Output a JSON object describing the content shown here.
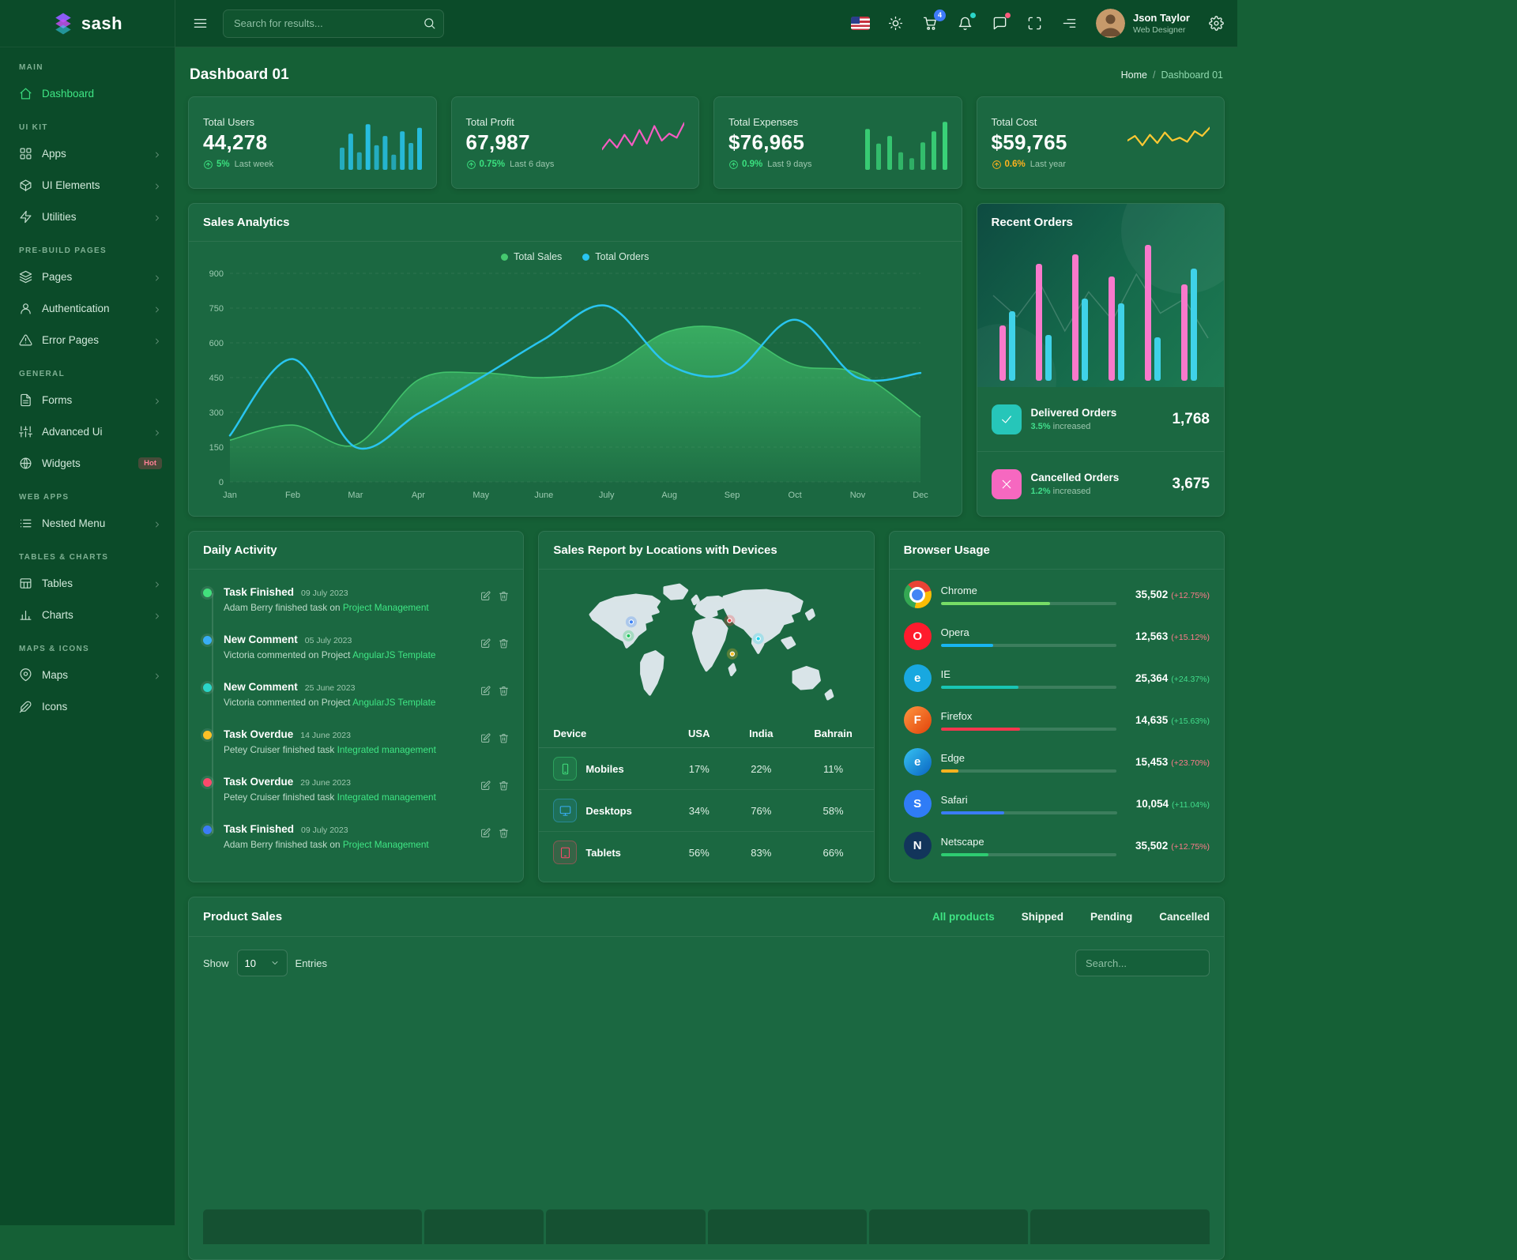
{
  "brand": {
    "name": "sash"
  },
  "colors": {
    "accent_green": "#3fe584",
    "cyan": "#29c5f0",
    "pink": "#f879cb",
    "yellow": "#ffc933"
  },
  "header": {
    "search_placeholder": "Search for results...",
    "cart_badge": "4",
    "user_name": "Json Taylor",
    "user_role": "Web Designer"
  },
  "sidebar": {
    "sections": [
      {
        "title": "MAIN",
        "items": [
          {
            "label": "Dashboard",
            "icon": "home",
            "active": true
          }
        ]
      },
      {
        "title": "UI KIT",
        "items": [
          {
            "label": "Apps",
            "icon": "apps",
            "chevron": true
          },
          {
            "label": "UI Elements",
            "icon": "box",
            "chevron": true
          },
          {
            "label": "Utilities",
            "icon": "zap",
            "chevron": true
          }
        ]
      },
      {
        "title": "PRE-BUILD PAGES",
        "items": [
          {
            "label": "Pages",
            "icon": "layers",
            "chevron": true
          },
          {
            "label": "Authentication",
            "icon": "user",
            "chevron": true
          },
          {
            "label": "Error Pages",
            "icon": "alert-triangle",
            "chevron": true
          }
        ]
      },
      {
        "title": "GENERAL",
        "items": [
          {
            "label": "Forms",
            "icon": "file-text",
            "chevron": true
          },
          {
            "label": "Advanced Ui",
            "icon": "sliders",
            "chevron": true
          },
          {
            "label": "Widgets",
            "icon": "globe",
            "badge": "Hot"
          }
        ]
      },
      {
        "title": "WEB APPS",
        "items": [
          {
            "label": "Nested Menu",
            "icon": "list",
            "chevron": true
          }
        ]
      },
      {
        "title": "TABLES & CHARTS",
        "items": [
          {
            "label": "Tables",
            "icon": "table",
            "chevron": true
          },
          {
            "label": "Charts",
            "icon": "bar-chart",
            "chevron": true
          }
        ]
      },
      {
        "title": "MAPS & ICONS",
        "items": [
          {
            "label": "Maps",
            "icon": "map-pin",
            "chevron": true
          },
          {
            "label": "Icons",
            "icon": "feather"
          }
        ]
      }
    ]
  },
  "page": {
    "title": "Dashboard 01",
    "breadcrumb_home": "Home",
    "breadcrumb_sep": "/",
    "breadcrumb_current": "Dashboard 01"
  },
  "stats": [
    {
      "label": "Total Users",
      "value": "44,278",
      "delta": "5%",
      "period": "Last week",
      "delta_color": "#3be07f",
      "spark": "bars",
      "spark_color": "#29c9f5"
    },
    {
      "label": "Total Profit",
      "value": "67,987",
      "delta": "0.75%",
      "period": "Last 6 days",
      "delta_color": "#3be07f",
      "spark": "line",
      "spark_color": "#f65cc3"
    },
    {
      "label": "Total Expenses",
      "value": "$76,965",
      "delta": "0.9%",
      "period": "Last 9 days",
      "delta_color": "#3be07f",
      "spark": "bars",
      "spark_color": "#3ddd7d"
    },
    {
      "label": "Total Cost",
      "value": "$59,765",
      "delta": "0.6%",
      "period": "Last year",
      "delta_color": "#ffb21e",
      "spark": "line",
      "spark_color": "#ffc933"
    }
  ],
  "recent_orders": {
    "title": "Recent Orders",
    "rows": [
      {
        "label": "Delivered Orders",
        "delta": "3.5%",
        "delta_note": "increased",
        "value": "1,768",
        "icon": "check",
        "icon_bg": "#26c6b9",
        "delta_color": "#41dd8b"
      },
      {
        "label": "Cancelled Orders",
        "delta": "1.2%",
        "delta_note": "increased",
        "value": "3,675",
        "icon": "x",
        "icon_bg": "#f668c0",
        "delta_color": "#41dd8b"
      }
    ]
  },
  "daily_activity": {
    "title": "Daily Activity",
    "items": [
      {
        "title": "Task Finished",
        "date": "09 July 2023",
        "text": "Adam Berry finished task on",
        "link": "Project Management",
        "dot": "#42e07d"
      },
      {
        "title": "New Comment",
        "date": "05 July 2023",
        "text": "Victoria commented on Project",
        "link": "AngularJS Template",
        "dot": "#38aef5"
      },
      {
        "title": "New Comment",
        "date": "25 June 2023",
        "text": "Victoria commented on Project",
        "link": "AngularJS Template",
        "dot": "#2bd5c8"
      },
      {
        "title": "Task Overdue",
        "date": "14 June 2023",
        "text": "Petey Cruiser finished task",
        "link": "Integrated management",
        "dot": "#fdc126"
      },
      {
        "title": "Task Overdue",
        "date": "29 June 2023",
        "text": "Petey Cruiser finished task",
        "link": "Integrated management",
        "dot": "#fb4a6c"
      },
      {
        "title": "Task Finished",
        "date": "09 July 2023",
        "text": "Adam Berry finished task on",
        "link": "Project Management",
        "dot": "#3b7cf6"
      }
    ]
  },
  "sales_report": {
    "title": "Sales Report by Locations with Devices",
    "columns": [
      "Device",
      "USA",
      "India",
      "Bahrain"
    ],
    "rows": [
      {
        "device": "Mobiles",
        "icon": "mobile",
        "color": "#42e07d",
        "values": [
          "17%",
          "22%",
          "11%"
        ]
      },
      {
        "device": "Desktops",
        "icon": "monitor",
        "color": "#38aef5",
        "values": [
          "34%",
          "76%",
          "58%"
        ]
      },
      {
        "device": "Tablets",
        "icon": "tablet",
        "color": "#fb4a6c",
        "values": [
          "56%",
          "83%",
          "66%"
        ]
      }
    ],
    "map_markers": [
      {
        "x": 21,
        "y": 32,
        "color": "#3b82f6"
      },
      {
        "x": 20,
        "y": 42,
        "color": "#22c55e"
      },
      {
        "x": 59,
        "y": 31,
        "color": "#ef4444"
      },
      {
        "x": 70,
        "y": 44,
        "color": "#22d3ee"
      },
      {
        "x": 60,
        "y": 55,
        "color": "#fbbf24"
      }
    ]
  },
  "browser_usage": {
    "title": "Browser Usage",
    "rows": [
      {
        "name": "Chrome",
        "value": "35,502",
        "delta": "(+12.75%)",
        "delta_color": "#ff7b8a",
        "bar_color": "#77dd66",
        "bar_pct": 62,
        "letter": "",
        "icon_bg": ""
      },
      {
        "name": "Opera",
        "value": "12,563",
        "delta": "(+15.12%)",
        "delta_color": "#ff7b8a",
        "bar_color": "#18b5f0",
        "bar_pct": 30,
        "letter": "O",
        "icon_bg": "#ff1b2d"
      },
      {
        "name": "IE",
        "value": "25,364",
        "delta": "(+24.37%)",
        "delta_color": "#41dd8b",
        "bar_color": "#19c5b4",
        "bar_pct": 44,
        "letter": "e",
        "icon_bg": "#18a8e0"
      },
      {
        "name": "Firefox",
        "value": "14,635",
        "delta": "(+15.63%)",
        "delta_color": "#41dd8b",
        "bar_color": "#f4374e",
        "bar_pct": 45,
        "letter": "F",
        "icon_bg": "linear-gradient(135deg,#ff9640,#e1420a)"
      },
      {
        "name": "Edge",
        "value": "15,453",
        "delta": "(+23.70%)",
        "delta_color": "#ff7b8a",
        "bar_color": "#ffb21e",
        "bar_pct": 10,
        "letter": "e",
        "icon_bg": "linear-gradient(135deg,#36c3f2,#0a64c2)"
      },
      {
        "name": "Safari",
        "value": "10,054",
        "delta": "(+11.04%)",
        "delta_color": "#41dd8b",
        "bar_color": "#3b7cf6",
        "bar_pct": 36,
        "letter": "S",
        "icon_bg": "#2f7cf6"
      },
      {
        "name": "Netscape",
        "value": "35,502",
        "delta": "(+12.75%)",
        "delta_color": "#ff7b8a",
        "bar_color": "#2ecc71",
        "bar_pct": 27,
        "letter": "N",
        "icon_bg": "#12355b"
      }
    ]
  },
  "product_sales": {
    "title": "Product Sales",
    "tabs": [
      {
        "label": "All products",
        "active": true
      },
      {
        "label": "Shipped"
      },
      {
        "label": "Pending"
      },
      {
        "label": "Cancelled"
      }
    ],
    "show_label": "Show",
    "page_size": "10",
    "entries_label": "Entries",
    "search_placeholder": "Search..."
  },
  "chart_data": [
    {
      "id": "sales_analytics",
      "type": "line",
      "title": "Sales Analytics",
      "x": [
        "Jan",
        "Feb",
        "Mar",
        "Apr",
        "May",
        "June",
        "July",
        "Aug",
        "Sep",
        "Oct",
        "Nov",
        "Dec"
      ],
      "ylim": [
        0,
        900
      ],
      "yticks": [
        0,
        150,
        300,
        450,
        600,
        750,
        900
      ],
      "grid": true,
      "legend_position": "top",
      "series": [
        {
          "name": "Total Sales",
          "type": "area",
          "color": "#45c96f",
          "values": [
            180,
            245,
            160,
            440,
            470,
            450,
            490,
            650,
            655,
            505,
            470,
            280
          ]
        },
        {
          "name": "Total Orders",
          "type": "line",
          "color": "#29c5f0",
          "values": [
            200,
            530,
            150,
            295,
            450,
            615,
            760,
            505,
            470,
            700,
            450,
            470
          ]
        }
      ]
    },
    {
      "id": "stat_sparks",
      "type": "bar",
      "series": [
        {
          "name": "Total Users spark",
          "values": [
            38,
            62,
            30,
            78,
            42,
            58,
            26,
            66,
            46,
            72
          ]
        },
        {
          "name": "Total Profit spark",
          "values": [
            35,
            52,
            38,
            60,
            42,
            68,
            45,
            75,
            50,
            62,
            55,
            80
          ]
        },
        {
          "name": "Total Expenses spark",
          "values": [
            70,
            45,
            58,
            30,
            20,
            47,
            66,
            82
          ]
        },
        {
          "name": "Total Cost spark",
          "values": [
            50,
            58,
            42,
            60,
            46,
            64,
            50,
            55,
            48,
            66,
            58,
            72
          ]
        }
      ]
    },
    {
      "id": "recent_orders_chart",
      "type": "bar",
      "spark": [
        120,
        90,
        135,
        70,
        125,
        85,
        150,
        95,
        115,
        60
      ],
      "series": [
        {
          "name": "pink",
          "color": "#f879cb",
          "values": [
            70,
            148,
            160,
            132,
            172,
            122
          ]
        },
        {
          "name": "cyan",
          "color": "#3fd2e8",
          "values": [
            88,
            58,
            104,
            98,
            55,
            142
          ]
        }
      ]
    }
  ]
}
